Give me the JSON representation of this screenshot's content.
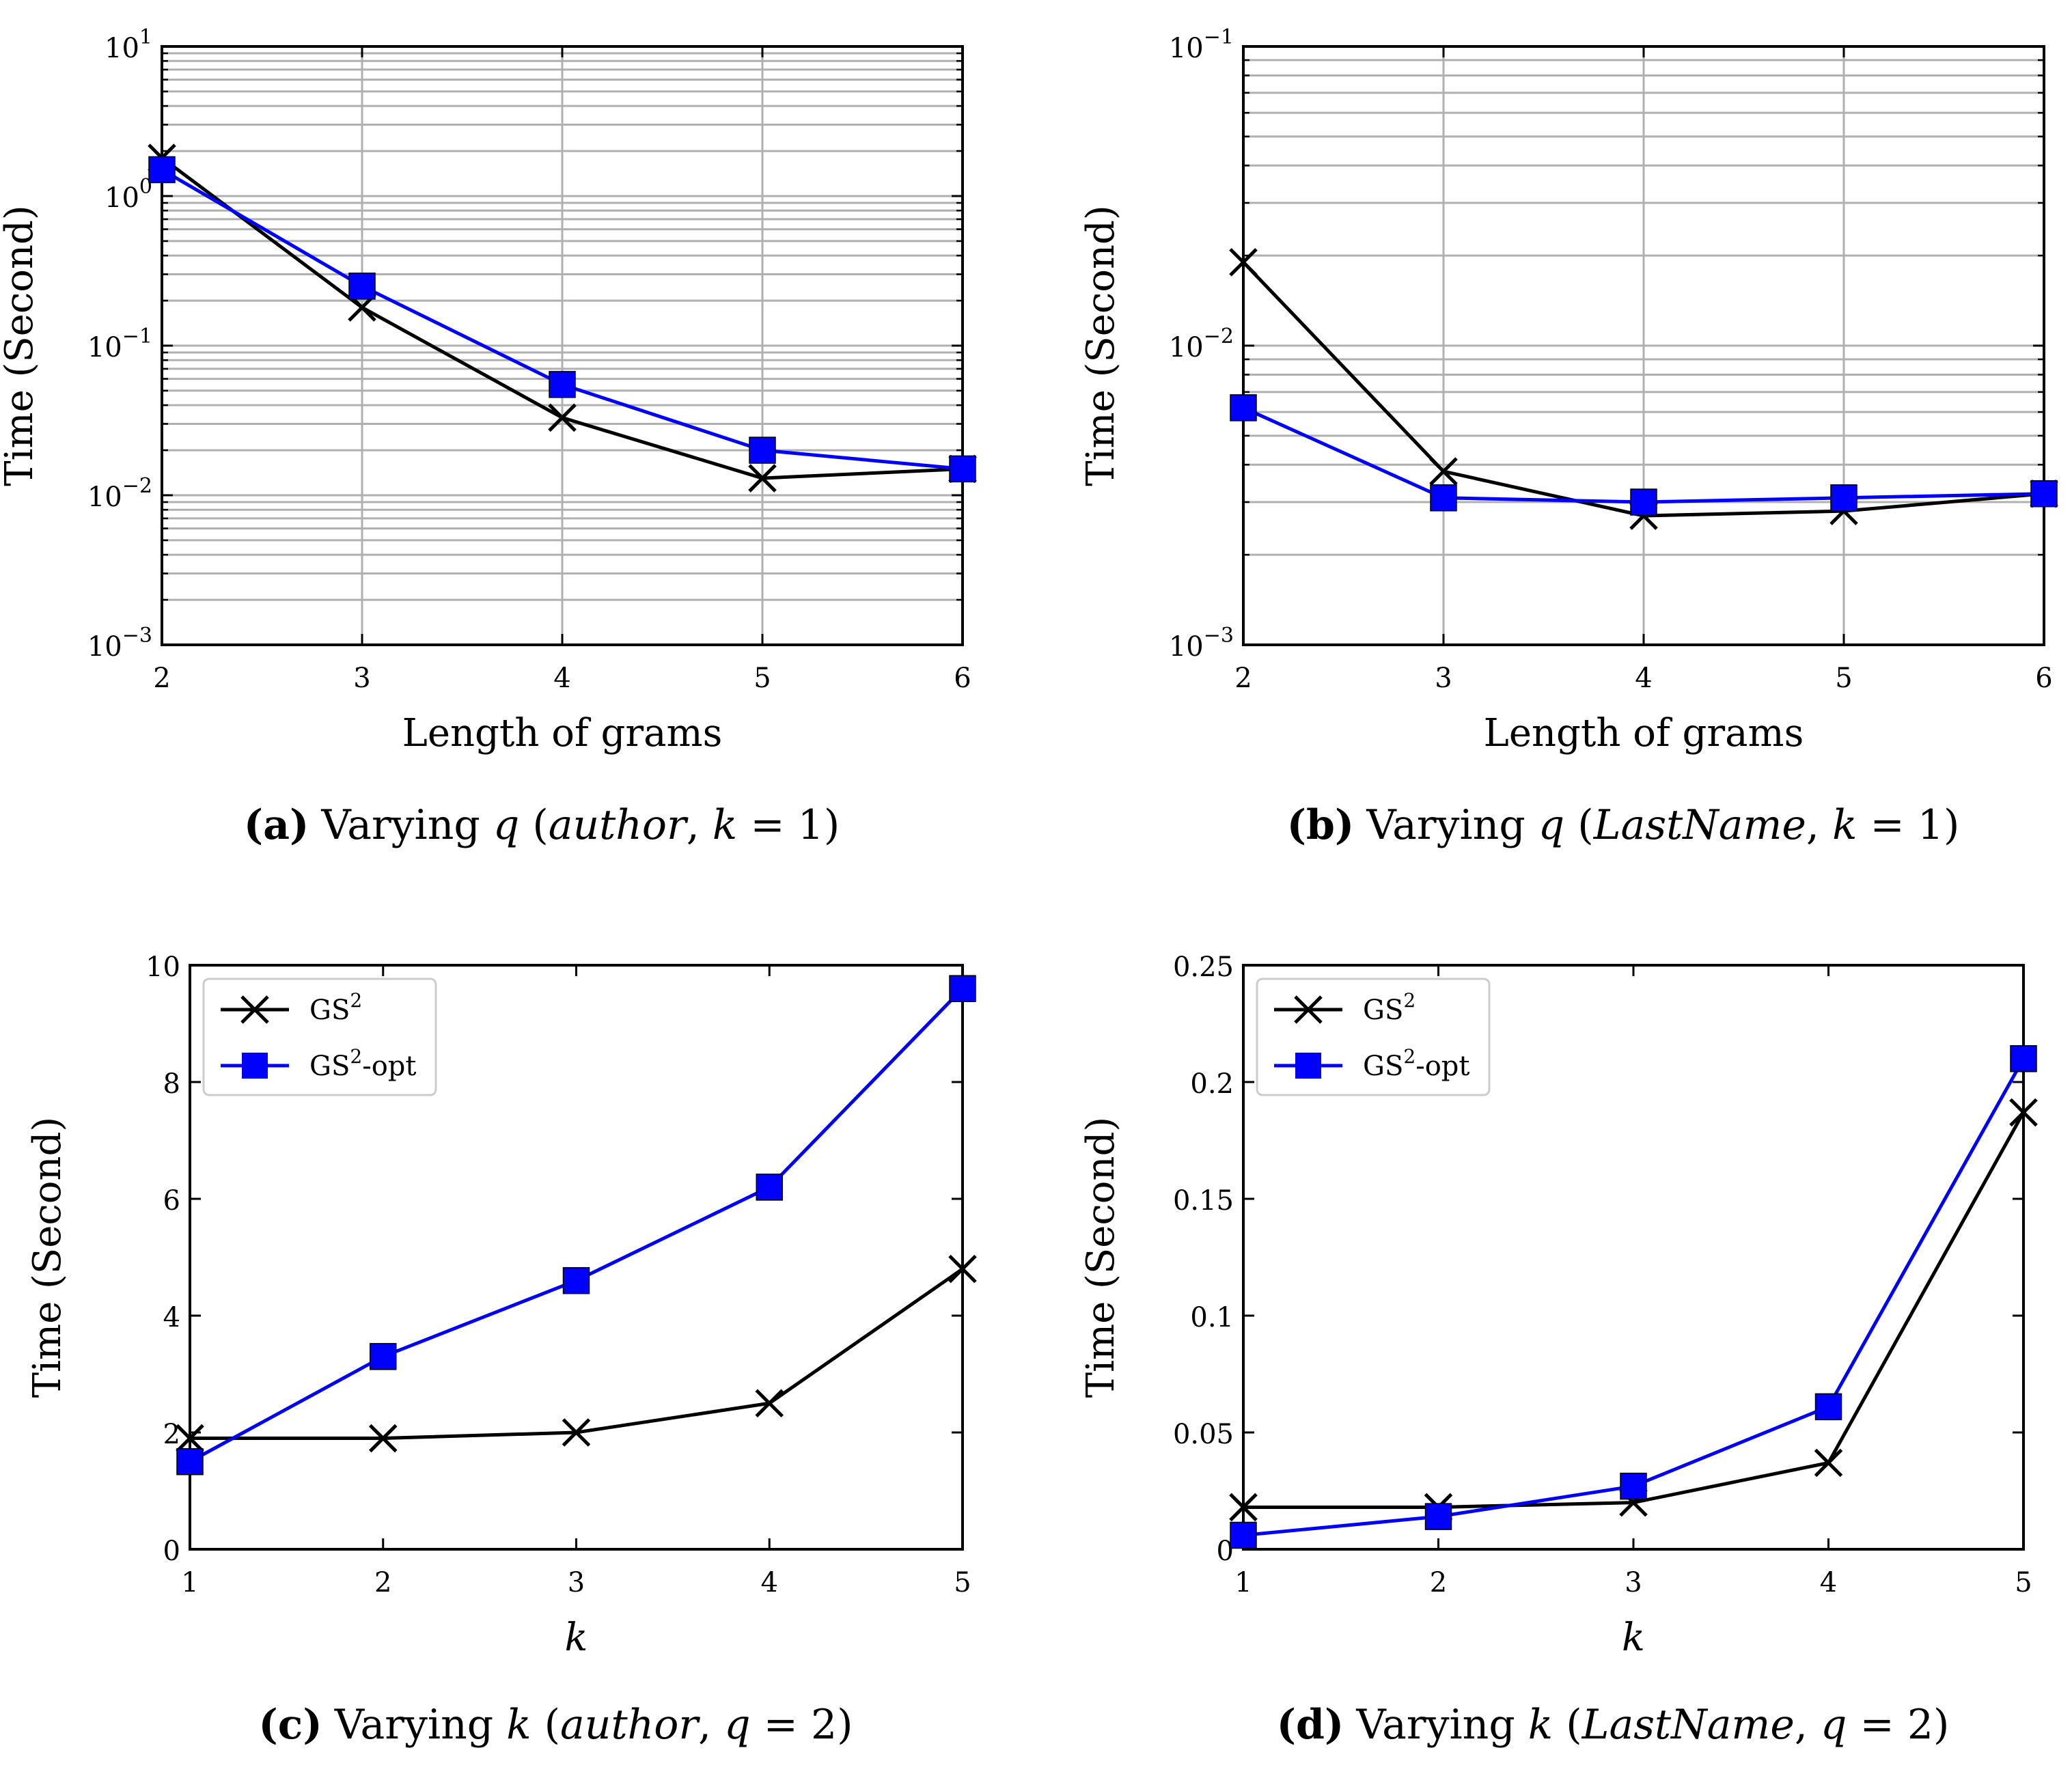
{
  "chart_data": [
    {
      "id": "a",
      "type": "line",
      "yscale": "log",
      "xlabel": "Length of grams",
      "ylabel": "Time (Second)",
      "xlim": [
        2,
        6
      ],
      "ylim": [
        0.001,
        10
      ],
      "xticks": [
        "2",
        "3",
        "4",
        "5",
        "6"
      ],
      "yticks": [
        {
          "value": 0.001,
          "base": "10",
          "exp": "−3"
        },
        {
          "value": 0.01,
          "base": "10",
          "exp": "−2"
        },
        {
          "value": 0.1,
          "base": "10",
          "exp": "−1"
        },
        {
          "value": 1,
          "base": "10",
          "exp": "0"
        },
        {
          "value": 10,
          "base": "10",
          "exp": "1"
        }
      ],
      "grid": true,
      "x": [
        2,
        3,
        4,
        5,
        6
      ],
      "series": [
        {
          "name": "GS2",
          "marker": "x",
          "color": "#000000",
          "values": [
            1.8,
            0.18,
            0.033,
            0.013,
            0.015
          ]
        },
        {
          "name": "GS2-opt",
          "marker": "square",
          "color": "#0000ff",
          "values": [
            1.5,
            0.25,
            0.055,
            0.02,
            0.015
          ]
        }
      ],
      "caption": {
        "letter": "(a)",
        "pre": "Varying ",
        "var": "q",
        "open": " (",
        "dataset": "author",
        "sep": ", ",
        "param": "k",
        "eq": " = 1)"
      }
    },
    {
      "id": "b",
      "type": "line",
      "yscale": "log",
      "xlabel": "Length of grams",
      "ylabel": "Time (Second)",
      "xlim": [
        2,
        6
      ],
      "ylim": [
        0.001,
        0.1
      ],
      "xticks": [
        "2",
        "3",
        "4",
        "5",
        "6"
      ],
      "yticks": [
        {
          "value": 0.001,
          "base": "10",
          "exp": "−3"
        },
        {
          "value": 0.01,
          "base": "10",
          "exp": "−2"
        },
        {
          "value": 0.1,
          "base": "10",
          "exp": "−1"
        }
      ],
      "grid": true,
      "x": [
        2,
        3,
        4,
        5,
        6
      ],
      "series": [
        {
          "name": "GS2",
          "marker": "x",
          "color": "#000000",
          "values": [
            0.019,
            0.0038,
            0.0027,
            0.0028,
            0.0032
          ]
        },
        {
          "name": "GS2-opt",
          "marker": "square",
          "color": "#0000ff",
          "values": [
            0.0062,
            0.0031,
            0.003,
            0.0031,
            0.0032
          ]
        }
      ],
      "caption": {
        "letter": "(b)",
        "pre": "Varying ",
        "var": "q",
        "open": " (",
        "dataset": "LastName",
        "sep": ", ",
        "param": "k",
        "eq": " = 1)"
      }
    },
    {
      "id": "c",
      "type": "line",
      "yscale": "linear",
      "xlabel": "k",
      "xlabel_italic": true,
      "ylabel": "Time (Second)",
      "xlim": [
        1,
        5
      ],
      "ylim": [
        0,
        10
      ],
      "xticks": [
        "1",
        "2",
        "3",
        "4",
        "5"
      ],
      "yticks": [
        {
          "value": 0,
          "label": "0"
        },
        {
          "value": 2,
          "label": "2"
        },
        {
          "value": 4,
          "label": "4"
        },
        {
          "value": 6,
          "label": "6"
        },
        {
          "value": 8,
          "label": "8"
        },
        {
          "value": 10,
          "label": "10"
        }
      ],
      "grid": false,
      "legend": "top-left",
      "x": [
        1,
        2,
        3,
        4,
        5
      ],
      "series": [
        {
          "name": "GS2",
          "marker": "x",
          "color": "#000000",
          "values": [
            1.9,
            1.9,
            2.0,
            2.5,
            4.8
          ]
        },
        {
          "name": "GS2-opt",
          "marker": "square",
          "color": "#0000ff",
          "values": [
            1.5,
            3.3,
            4.6,
            6.2,
            9.6
          ]
        }
      ],
      "caption": {
        "letter": "(c)",
        "pre": "Varying ",
        "var": "k",
        "open": " (",
        "dataset": "author",
        "sep": ", ",
        "param": "q",
        "eq": " = 2)"
      }
    },
    {
      "id": "d",
      "type": "line",
      "yscale": "linear",
      "xlabel": "k",
      "xlabel_italic": true,
      "ylabel": "Time (Second)",
      "xlim": [
        1,
        5
      ],
      "ylim": [
        0,
        0.25
      ],
      "xticks": [
        "1",
        "2",
        "3",
        "4",
        "5"
      ],
      "yticks": [
        {
          "value": 0,
          "label": "0"
        },
        {
          "value": 0.05,
          "label": "0.05"
        },
        {
          "value": 0.1,
          "label": "0.1"
        },
        {
          "value": 0.15,
          "label": "0.15"
        },
        {
          "value": 0.2,
          "label": "0.2"
        },
        {
          "value": 0.25,
          "label": "0.25"
        }
      ],
      "grid": false,
      "legend": "top-left",
      "x": [
        1,
        2,
        3,
        4,
        5
      ],
      "series": [
        {
          "name": "GS2",
          "marker": "x",
          "color": "#000000",
          "values": [
            0.018,
            0.018,
            0.02,
            0.037,
            0.187
          ]
        },
        {
          "name": "GS2-opt",
          "marker": "square",
          "color": "#0000ff",
          "values": [
            0.006,
            0.014,
            0.027,
            0.061,
            0.21
          ]
        }
      ],
      "caption": {
        "letter": "(d)",
        "pre": "Varying ",
        "var": "k",
        "open": " (",
        "dataset": "LastName",
        "sep": ", ",
        "param": "q",
        "eq": " = 2)"
      }
    }
  ],
  "legend": {
    "entries": [
      {
        "base": "GS",
        "sup": "2",
        "suffix": ""
      },
      {
        "base": "GS",
        "sup": "2",
        "suffix": "-opt"
      }
    ]
  }
}
